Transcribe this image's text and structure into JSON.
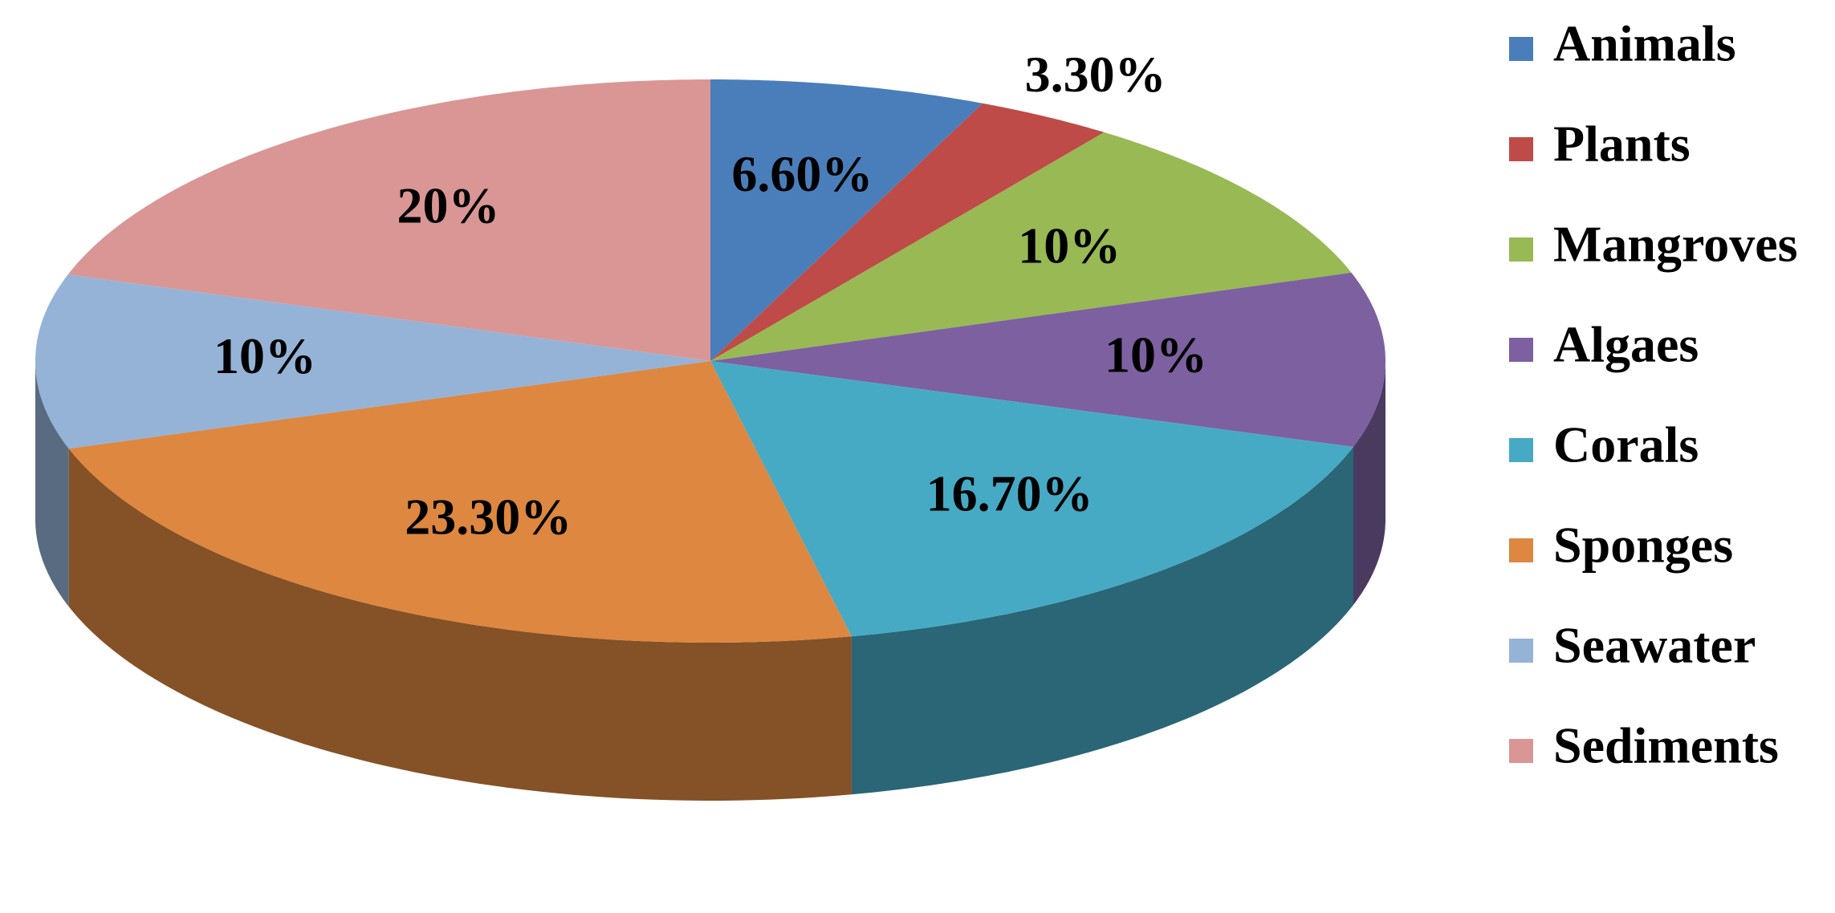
{
  "chart_data": {
    "type": "pie",
    "categories": [
      "Animals",
      "Plants",
      "Mangroves",
      "Algaes",
      "Corals",
      "Sponges",
      "Seawater",
      "Sediments"
    ],
    "values": [
      6.6,
      3.3,
      10,
      10,
      16.7,
      23.3,
      10,
      20
    ],
    "value_labels": [
      "6.60%",
      "3.30%",
      "10%",
      "10%",
      "16.70%",
      "23.30%",
      "10%",
      "20%"
    ],
    "colors": [
      "#4a7ebb",
      "#be4b48",
      "#98b954",
      "#7d60a0",
      "#46aac5",
      "#dd8740",
      "#95b3d7",
      "#d99694"
    ],
    "legend": "right"
  }
}
